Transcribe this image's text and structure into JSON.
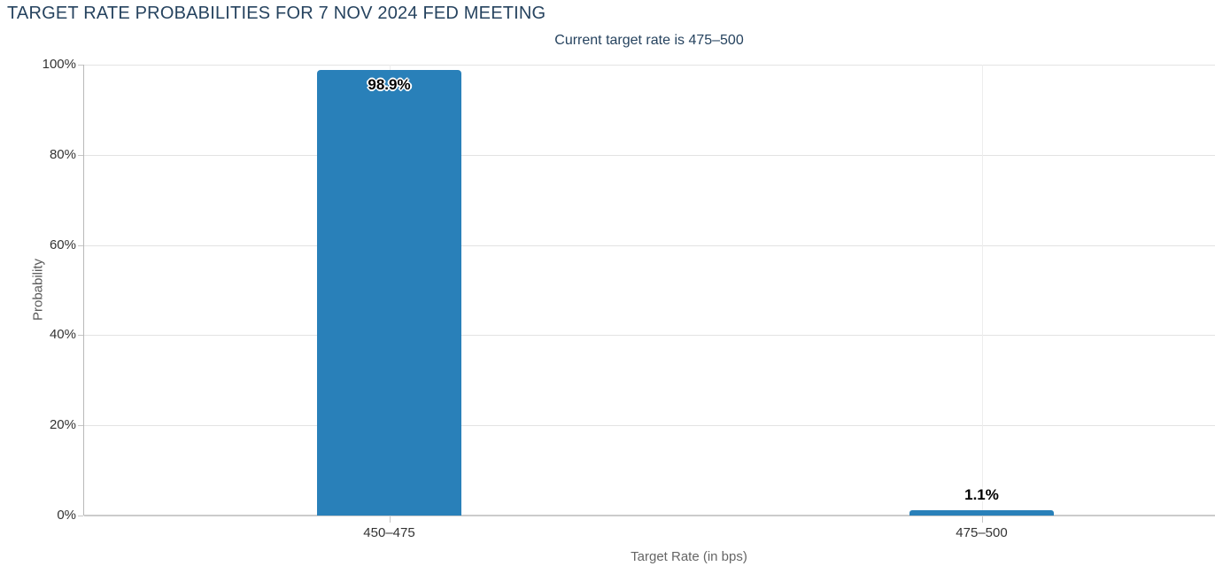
{
  "chart_data": {
    "type": "bar",
    "title": "TARGET RATE PROBABILITIES FOR 7 NOV 2024 FED MEETING",
    "subtitle": "Current target rate is 475–500",
    "xlabel": "Target Rate (in bps)",
    "ylabel": "Probability",
    "categories": [
      "450–475",
      "475–500"
    ],
    "values": [
      98.9,
      1.1
    ],
    "data_labels": [
      "98.9%",
      "1.1%"
    ],
    "ylim": [
      0,
      100
    ],
    "ytick_values": [
      0,
      20,
      40,
      60,
      80,
      100
    ],
    "ytick_labels": [
      "0%",
      "20%",
      "40%",
      "60%",
      "80%",
      "100%"
    ],
    "grid": true,
    "legend": false,
    "colors": {
      "bar": "#2980b9",
      "title": "#26435f",
      "subtitle": "#26435f",
      "tick_label": "#333333",
      "axis_title": "#666666",
      "gridline": "#e3e3e3",
      "axis_line": "#cccccc"
    }
  }
}
